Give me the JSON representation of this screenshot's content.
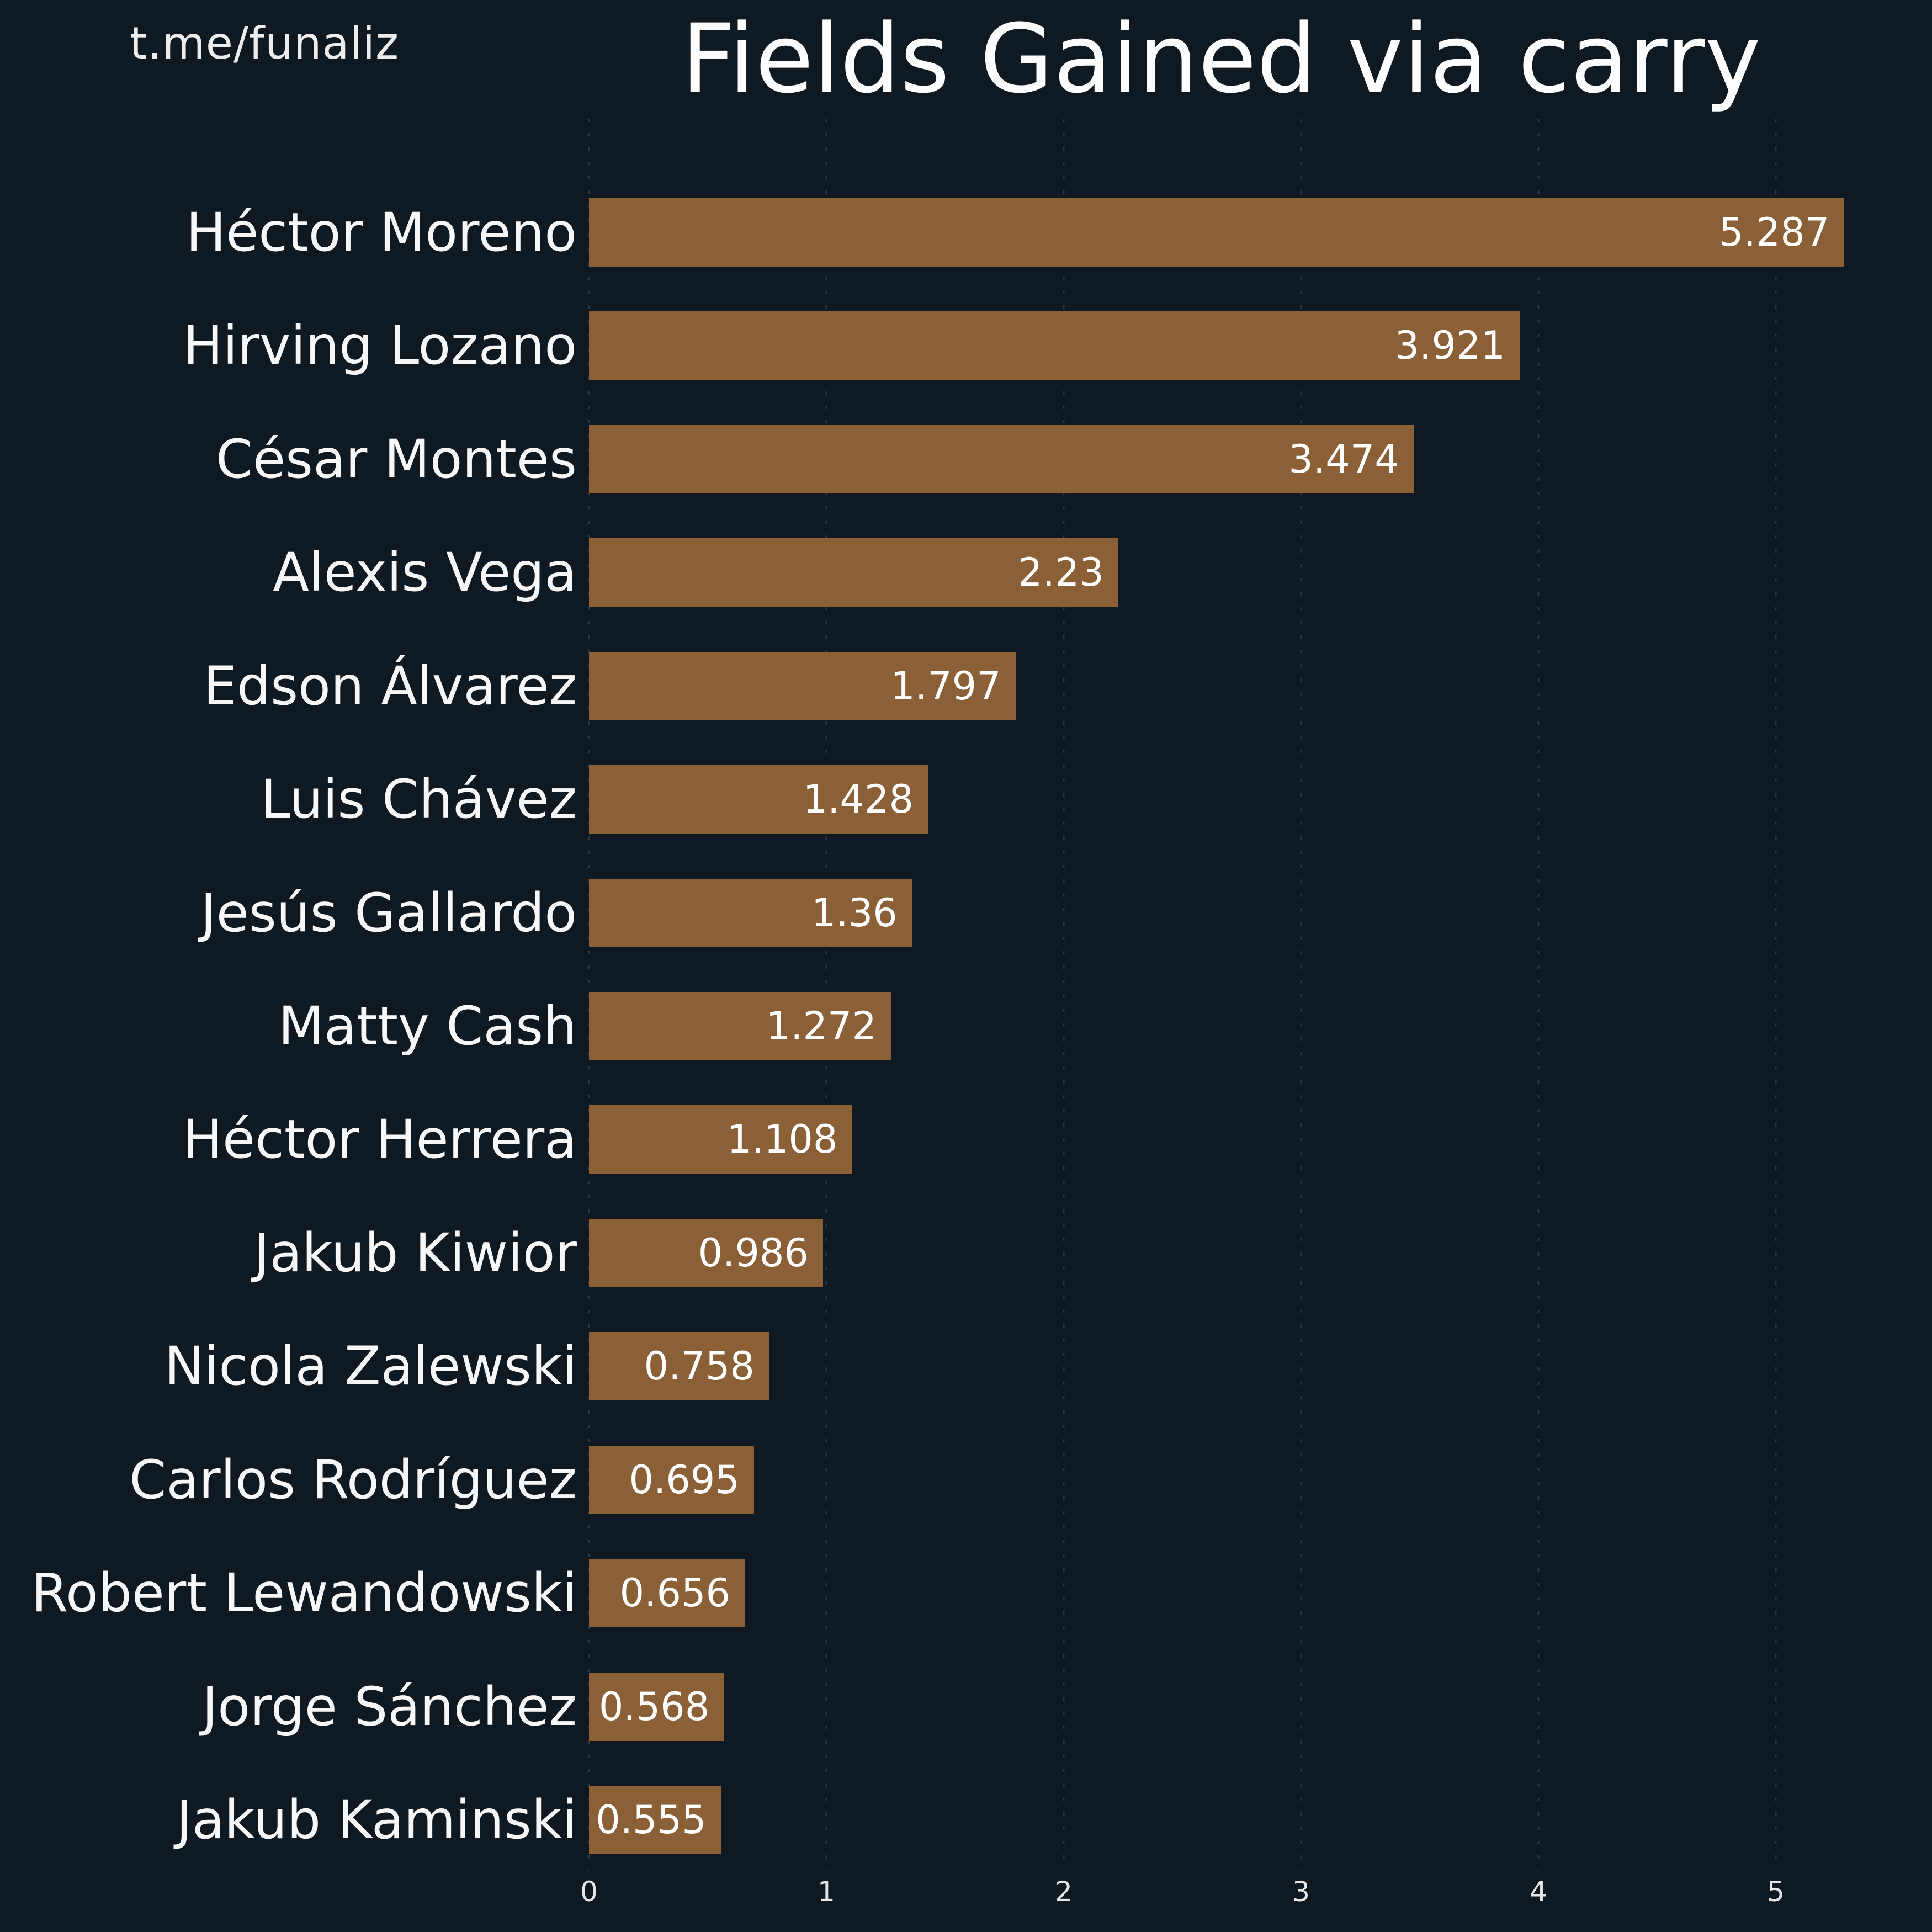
{
  "watermark": "t.me/funaliz",
  "title": "Fields Gained via carry",
  "colors": {
    "background": "#0f1922",
    "bar": "#8c6036",
    "text": "#ffffff",
    "watermark": "#ededed",
    "tick_label": "#e6e6e6",
    "gridline": "rgba(255,255,255,0.13)"
  },
  "chart_data": {
    "type": "bar",
    "orientation": "horizontal",
    "title": "Fields Gained via carry",
    "xlabel": "",
    "ylabel": "",
    "categories": [
      "Héctor Moreno",
      "Hirving Lozano",
      "César Montes",
      "Alexis Vega",
      "Edson Álvarez",
      "Luis Chávez",
      "Jesús Gallardo",
      "Matty Cash",
      "Héctor Herrera",
      "Jakub Kiwior",
      "Nicola Zalewski",
      "Carlos Rodríguez",
      "Robert Lewandowski",
      "Jorge Sánchez",
      "Jakub Kaminski"
    ],
    "values": [
      5.287,
      3.921,
      3.474,
      2.23,
      1.797,
      1.428,
      1.36,
      1.272,
      1.108,
      0.986,
      0.758,
      0.695,
      0.656,
      0.568,
      0.555
    ],
    "value_labels": [
      "5.287",
      "3.921",
      "3.474",
      "2.23",
      "1.797",
      "1.428",
      "1.36",
      "1.272",
      "1.108",
      "0.986",
      "0.758",
      "0.695",
      "0.656",
      "0.568",
      "0.555"
    ],
    "xlim": [
      0,
      5.5
    ],
    "xticks": [
      "0",
      "1",
      "2",
      "3",
      "4",
      "5"
    ],
    "grid": "vertical-dashed",
    "legend": "none",
    "bars_start_inside_labels": false
  }
}
